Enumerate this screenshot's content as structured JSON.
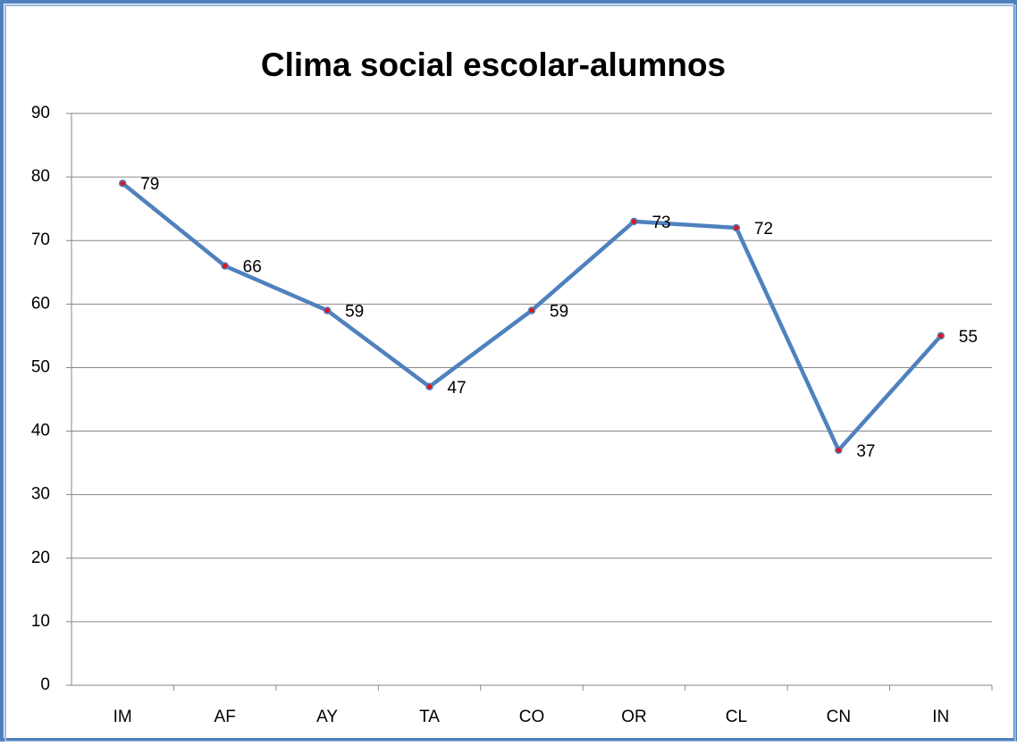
{
  "chart_data": {
    "type": "line",
    "title": "Clima social escolar-alumnos",
    "categories": [
      "IM",
      "AF",
      "AY",
      "TA",
      "CO",
      "OR",
      "CL",
      "CN",
      "IN"
    ],
    "series": [
      {
        "name": "Clima social escolar-alumnos",
        "color": "#4f81bd",
        "values": [
          79,
          66,
          59,
          47,
          59,
          73,
          72,
          37,
          55
        ]
      }
    ],
    "marker_color": "#e0141e",
    "ylim": [
      0,
      90
    ],
    "yticks": [
      0,
      10,
      20,
      30,
      40,
      50,
      60,
      70,
      80,
      90
    ],
    "grid": true
  }
}
